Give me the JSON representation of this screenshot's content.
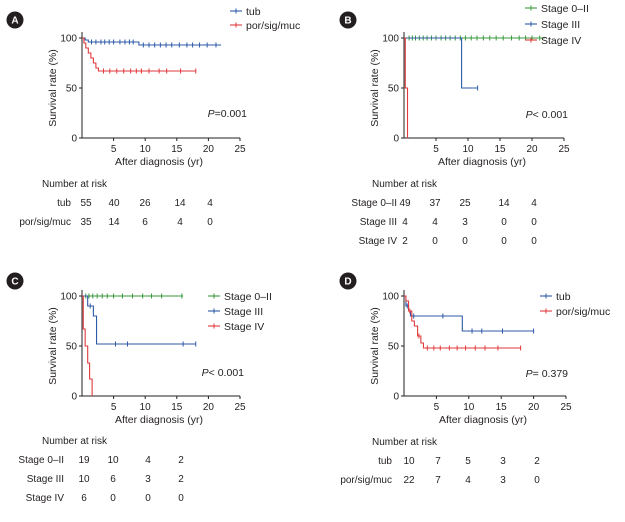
{
  "chart_data": [
    {
      "type": "line",
      "panel": "A",
      "ylabel": "Survival rate (%)",
      "xlabel": "After diagnosis (yr)",
      "xlim": [
        0,
        25
      ],
      "ylim": [
        0,
        100
      ],
      "xticks": [
        "5",
        "10",
        "15",
        "20",
        "25"
      ],
      "yticks": [
        "0",
        "50",
        "100"
      ],
      "legend_position": "top-right",
      "p_value": {
        "label": "P",
        "value": "=0.001"
      },
      "series": [
        {
          "name": "tub",
          "color": "#2d5aa8",
          "steps": [
            [
              0,
              100
            ],
            [
              0.5,
              98
            ],
            [
              1,
              96
            ],
            [
              9,
              96
            ],
            [
              9,
              93
            ],
            [
              22,
              93
            ]
          ],
          "censored": [
            1.5,
            2.2,
            3,
            3.6,
            4.3,
            5,
            6,
            6.8,
            7.5,
            8.1,
            9.7,
            10.6,
            11.5,
            12.4,
            13.3,
            14.2,
            15.4,
            16.6,
            17.5,
            18.6,
            19.8,
            21.2
          ]
        },
        {
          "name": "por/sig/muc",
          "color": "#e03a3c",
          "steps": [
            [
              0,
              100
            ],
            [
              0.3,
              95
            ],
            [
              0.6,
              90
            ],
            [
              1,
              85
            ],
            [
              1.4,
              80
            ],
            [
              1.8,
              75
            ],
            [
              2.2,
              70
            ],
            [
              2.6,
              67
            ],
            [
              18,
              67
            ]
          ],
          "censored": [
            3.4,
            4.4,
            5.5,
            6.6,
            7.7,
            8.6,
            9.4,
            10.6,
            12.2,
            13.4,
            15.6,
            18
          ]
        }
      ],
      "risk_table": {
        "title": "Number at risk",
        "rows": [
          {
            "label": "tub",
            "values": [
              "55",
              "40",
              "26",
              "14",
              "4"
            ]
          },
          {
            "label": "por/sig/muc",
            "values": [
              "35",
              "14",
              "6",
              "4",
              "0"
            ]
          }
        ]
      }
    },
    {
      "type": "line",
      "panel": "B",
      "ylabel": "Survival rate (%)",
      "xlabel": "After diagnosis (yr)",
      "xlim": [
        0,
        25
      ],
      "ylim": [
        0,
        100
      ],
      "xticks": [
        "5",
        "10",
        "15",
        "20",
        "25"
      ],
      "yticks": [
        "0",
        "50",
        "100"
      ],
      "legend_position": "top-right",
      "p_value": {
        "label": "P",
        "value": "< 0.001"
      },
      "series": [
        {
          "name": "Stage 0–II",
          "color": "#3a9a3c",
          "steps": [
            [
              0,
              100
            ],
            [
              22,
              100
            ]
          ],
          "censored": [
            0.8,
            1.3,
            1.8,
            2.4,
            3,
            3.6,
            4.3,
            5,
            5.8,
            6.5,
            7.2,
            8,
            8.8,
            9.6,
            10.5,
            11.4,
            12.4,
            13.4,
            14.4,
            15.5,
            16.8,
            18,
            19,
            20,
            21.2
          ]
        },
        {
          "name": "Stage III",
          "color": "#2d5aa8",
          "steps": [
            [
              0,
              100
            ],
            [
              9,
              100
            ],
            [
              9,
              50
            ],
            [
              11.5,
              50
            ]
          ],
          "censored": [
            11.5
          ]
        },
        {
          "name": "Stage IV",
          "color": "#e03a3c",
          "steps": [
            [
              0,
              100
            ],
            [
              0.2,
              100
            ],
            [
              0.2,
              50
            ],
            [
              0.55,
              50
            ],
            [
              0.55,
              0
            ]
          ],
          "censored": []
        }
      ],
      "risk_table": {
        "title": "Number at risk",
        "rows": [
          {
            "label": "Stage 0–II",
            "values": [
              "49",
              "37",
              "25",
              "14",
              "4"
            ]
          },
          {
            "label": "Stage III",
            "values": [
              "4",
              "4",
              "3",
              "0",
              "0"
            ]
          },
          {
            "label": "Stage IV",
            "values": [
              "2",
              "0",
              "0",
              "0",
              "0"
            ]
          }
        ]
      }
    },
    {
      "type": "line",
      "panel": "C",
      "ylabel": "Survival rate (%)",
      "xlabel": "After diagnosis (yr)",
      "xlim": [
        0,
        25
      ],
      "ylim": [
        0,
        100
      ],
      "xticks": [
        "5",
        "10",
        "15",
        "20",
        "25"
      ],
      "yticks": [
        "0",
        "50",
        "100"
      ],
      "legend_position": "top-right",
      "p_value": {
        "label": "P",
        "value": "< 0.001"
      },
      "series": [
        {
          "name": "Stage 0–II",
          "color": "#3a9a3c",
          "steps": [
            [
              0,
              100
            ],
            [
              16,
              100
            ]
          ],
          "censored": [
            0.6,
            1.1,
            1.7,
            2.4,
            3.2,
            4,
            5,
            6.4,
            8,
            9.6,
            11,
            12.6,
            15.8
          ]
        },
        {
          "name": "Stage III",
          "color": "#2d5aa8",
          "steps": [
            [
              0,
              100
            ],
            [
              0.9,
              100
            ],
            [
              0.9,
              90
            ],
            [
              1.8,
              90
            ],
            [
              1.8,
              80
            ],
            [
              2.3,
              80
            ],
            [
              2.3,
              52
            ],
            [
              18,
              52
            ]
          ],
          "censored": [
            1.3,
            5.3,
            7.2,
            16,
            18
          ]
        },
        {
          "name": "Stage IV",
          "color": "#e03a3c",
          "steps": [
            [
              0,
              100
            ],
            [
              0.2,
              100
            ],
            [
              0.2,
              67
            ],
            [
              0.5,
              67
            ],
            [
              0.5,
              50
            ],
            [
              0.9,
              50
            ],
            [
              0.9,
              33
            ],
            [
              1.2,
              33
            ],
            [
              1.2,
              17
            ],
            [
              1.6,
              17
            ],
            [
              1.6,
              0
            ]
          ],
          "censored": []
        }
      ],
      "risk_table": {
        "title": "Number at risk",
        "rows": [
          {
            "label": "Stage 0–II",
            "values": [
              "19",
              "10",
              "4",
              "2"
            ]
          },
          {
            "label": "Stage III",
            "values": [
              "10",
              "6",
              "3",
              "2"
            ]
          },
          {
            "label": "Stage IV",
            "values": [
              "6",
              "0",
              "0",
              "0"
            ]
          }
        ]
      }
    },
    {
      "type": "line",
      "panel": "D",
      "ylabel": "Survival rate (%)",
      "xlabel": "After diagnosis (yr)",
      "xlim": [
        0,
        25
      ],
      "ylim": [
        0,
        100
      ],
      "xticks": [
        "5",
        "10",
        "15",
        "20",
        "25"
      ],
      "yticks": [
        "0",
        "50",
        "100"
      ],
      "legend_position": "top-right",
      "p_value": {
        "label": "P",
        "value": "= 0.379"
      },
      "series": [
        {
          "name": "tub",
          "color": "#2d5aa8",
          "steps": [
            [
              0,
              100
            ],
            [
              0.3,
              90
            ],
            [
              0.7,
              85
            ],
            [
              1,
              80
            ],
            [
              9,
              80
            ],
            [
              9,
              65
            ],
            [
              20,
              65
            ]
          ],
          "censored": [
            0.5,
            1.5,
            6,
            10.5,
            12,
            15.2,
            20
          ]
        },
        {
          "name": "por/sig/muc",
          "color": "#e03a3c",
          "steps": [
            [
              0,
              100
            ],
            [
              0.3,
              95
            ],
            [
              0.7,
              85
            ],
            [
              1.2,
              75
            ],
            [
              1.6,
              70
            ],
            [
              2.1,
              60
            ],
            [
              2.6,
              53
            ],
            [
              3,
              48
            ],
            [
              18,
              48
            ]
          ],
          "censored": [
            0.9,
            2.3,
            3.6,
            4.6,
            5.6,
            7,
            8.2,
            9.5,
            11,
            12.5,
            14.5,
            18
          ]
        }
      ],
      "risk_table": {
        "title": "Number at risk",
        "rows": [
          {
            "label": "tub",
            "values": [
              "10",
              "7",
              "5",
              "3",
              "2"
            ]
          },
          {
            "label": "por/sig/muc",
            "values": [
              "22",
              "7",
              "4",
              "3",
              "0"
            ]
          }
        ]
      }
    }
  ]
}
